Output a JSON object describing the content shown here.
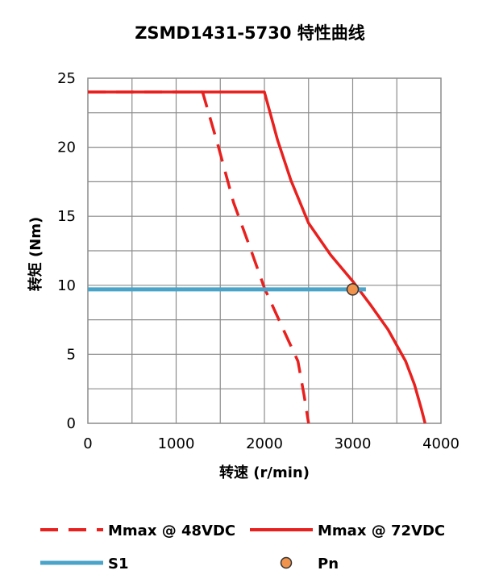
{
  "chart_data": {
    "type": "line",
    "title": "ZSMD1431-5730 特性曲线",
    "xlabel": "转速 (r/min)",
    "ylabel": "转矩 (Nm)",
    "xlim": [
      0,
      4000
    ],
    "ylim": [
      0,
      25
    ],
    "x_ticks": [
      "0",
      "1000",
      "2000",
      "3000",
      "4000"
    ],
    "y_ticks": [
      "0",
      "5",
      "10",
      "15",
      "20",
      "25"
    ],
    "grid": true,
    "legend_position": "bottom",
    "series": [
      {
        "name": "Mmax @ 48VDC",
        "style": "dashed",
        "color": "#e8201e",
        "points": [
          [
            0,
            24
          ],
          [
            1300,
            24
          ],
          [
            1480,
            20
          ],
          [
            1650,
            16
          ],
          [
            1850,
            12.5
          ],
          [
            2000,
            9.8
          ],
          [
            2200,
            7
          ],
          [
            2380,
            4.5
          ],
          [
            2450,
            2
          ],
          [
            2500,
            0
          ]
        ]
      },
      {
        "name": "Mmax @ 72VDC",
        "style": "solid",
        "color": "#e8201e",
        "points": [
          [
            0,
            24
          ],
          [
            2000,
            24
          ],
          [
            2150,
            20.5
          ],
          [
            2300,
            17.6
          ],
          [
            2500,
            14.5
          ],
          [
            2750,
            12.2
          ],
          [
            3000,
            10.3
          ],
          [
            3200,
            8.6
          ],
          [
            3400,
            6.8
          ],
          [
            3600,
            4.5
          ],
          [
            3700,
            2.8
          ],
          [
            3780,
            1
          ],
          [
            3820,
            0
          ]
        ]
      },
      {
        "name": "S1",
        "style": "solid",
        "color": "#4aa3c8",
        "points": [
          [
            0,
            9.7
          ],
          [
            3150,
            9.7
          ]
        ]
      },
      {
        "name": "Pn",
        "style": "marker",
        "color": "#f0944d",
        "points": [
          [
            3000,
            9.7
          ]
        ]
      }
    ]
  }
}
